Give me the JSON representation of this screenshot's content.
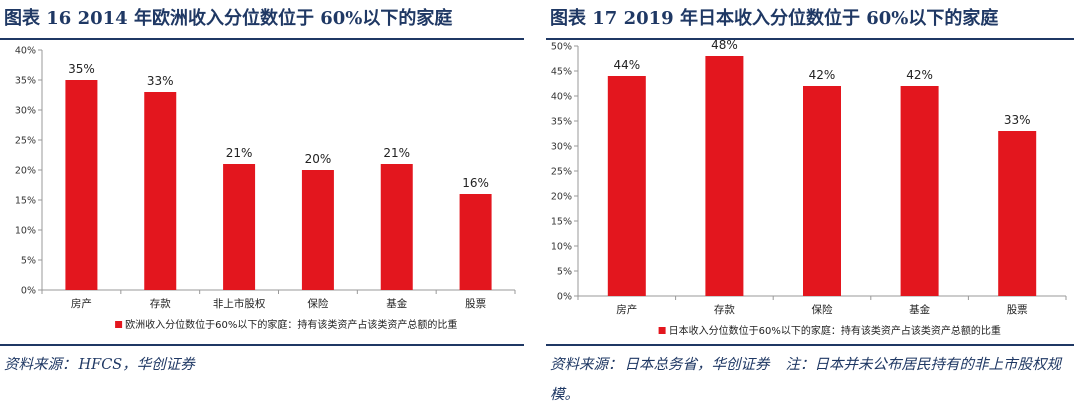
{
  "colors": {
    "bar": "#e3161e",
    "title": "#1f3864",
    "axis": "#999999"
  },
  "chart_data": [
    {
      "type": "bar",
      "title": "图表 16   2014 年欧洲收入分位数位于 60%以下的家庭",
      "categories": [
        "房产",
        "存款",
        "非上市股权",
        "保险",
        "基金",
        "股票"
      ],
      "series": [
        {
          "name": "欧洲收入分位数位于60%以下的家庭：持有该类资产占该类资产总额的比重",
          "values": [
            35,
            33,
            21,
            20,
            21,
            16
          ]
        }
      ],
      "value_labels": [
        "35%",
        "33%",
        "21%",
        "20%",
        "21%",
        "16%"
      ],
      "ylim": [
        0,
        40
      ],
      "yticks": [
        0,
        5,
        10,
        15,
        20,
        25,
        30,
        35,
        40
      ],
      "ytick_labels": [
        "0%",
        "5%",
        "10%",
        "15%",
        "20%",
        "25%",
        "30%",
        "35%",
        "40%"
      ],
      "xlabel": "",
      "ylabel": "",
      "grid": false,
      "legend_position": "bottom",
      "source": {
        "label": "资料来源：",
        "text": "HFCS，华创证券",
        "note": ""
      }
    },
    {
      "type": "bar",
      "title": "图表 17   2019 年日本收入分位数位于 60%以下的家庭",
      "categories": [
        "房产",
        "存款",
        "保险",
        "基金",
        "股票"
      ],
      "series": [
        {
          "name": "日本收入分位数位于60%以下的家庭：持有该类资产占该类资产总额的比重",
          "values": [
            44,
            48,
            42,
            42,
            33
          ]
        }
      ],
      "value_labels": [
        "44%",
        "48%",
        "42%",
        "42%",
        "33%"
      ],
      "ylim": [
        0,
        50
      ],
      "yticks": [
        0,
        5,
        10,
        15,
        20,
        25,
        30,
        35,
        40,
        45,
        50
      ],
      "ytick_labels": [
        "0%",
        "5%",
        "10%",
        "15%",
        "20%",
        "25%",
        "30%",
        "35%",
        "40%",
        "45%",
        "50%"
      ],
      "xlabel": "",
      "ylabel": "",
      "grid": false,
      "legend_position": "bottom",
      "source": {
        "label": "资料来源：",
        "text": "日本总务省，华创证券",
        "note": "注：日本并未公布居民持有的非上市股权规模。"
      }
    }
  ]
}
